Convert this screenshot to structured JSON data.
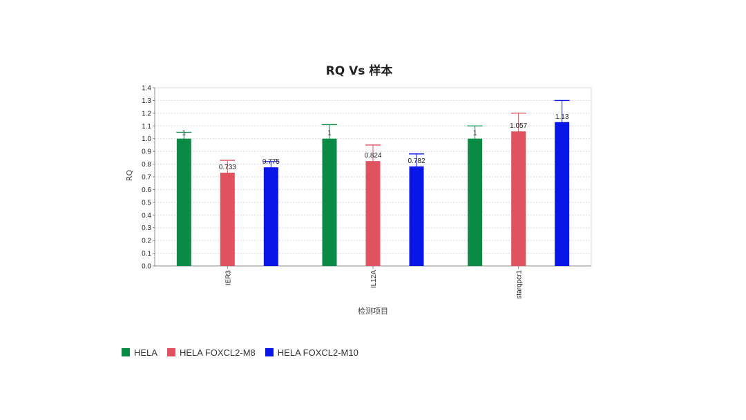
{
  "chart_data": {
    "type": "bar",
    "title": "RQ Vs 样本",
    "xlabel": "检测项目",
    "ylabel": "RQ",
    "ylim": [
      0,
      1.4
    ],
    "yticks": [
      "0.0",
      "0.1",
      "0.2",
      "0.3",
      "0.4",
      "0.5",
      "0.6",
      "0.7",
      "0.8",
      "0.9",
      "1.0",
      "1.1",
      "1.2",
      "1.3",
      "1.4"
    ],
    "grid": true,
    "legend": "bottom-left",
    "categories": [
      "IER3",
      "IL12A",
      "starqpcr1"
    ],
    "series": [
      {
        "name": "HELA",
        "color": "#0b8a45",
        "values": [
          1.0,
          1.0,
          1.0
        ],
        "error_upper": [
          1.05,
          1.11,
          1.1
        ],
        "labels": [
          "1",
          "1",
          "1"
        ]
      },
      {
        "name": "HELA FOXCL2-M8",
        "color": "#e05260",
        "values": [
          0.733,
          0.824,
          1.057
        ],
        "error_upper": [
          0.83,
          0.95,
          1.2
        ],
        "labels": [
          "0.733",
          "0.824",
          "1.057"
        ]
      },
      {
        "name": "HELA FOXCL2-M10",
        "color": "#0a16e6",
        "values": [
          0.775,
          0.782,
          1.13
        ],
        "error_upper": [
          0.82,
          0.88,
          1.3
        ],
        "labels": [
          "0.775",
          "0.782",
          "1.13"
        ]
      }
    ]
  }
}
